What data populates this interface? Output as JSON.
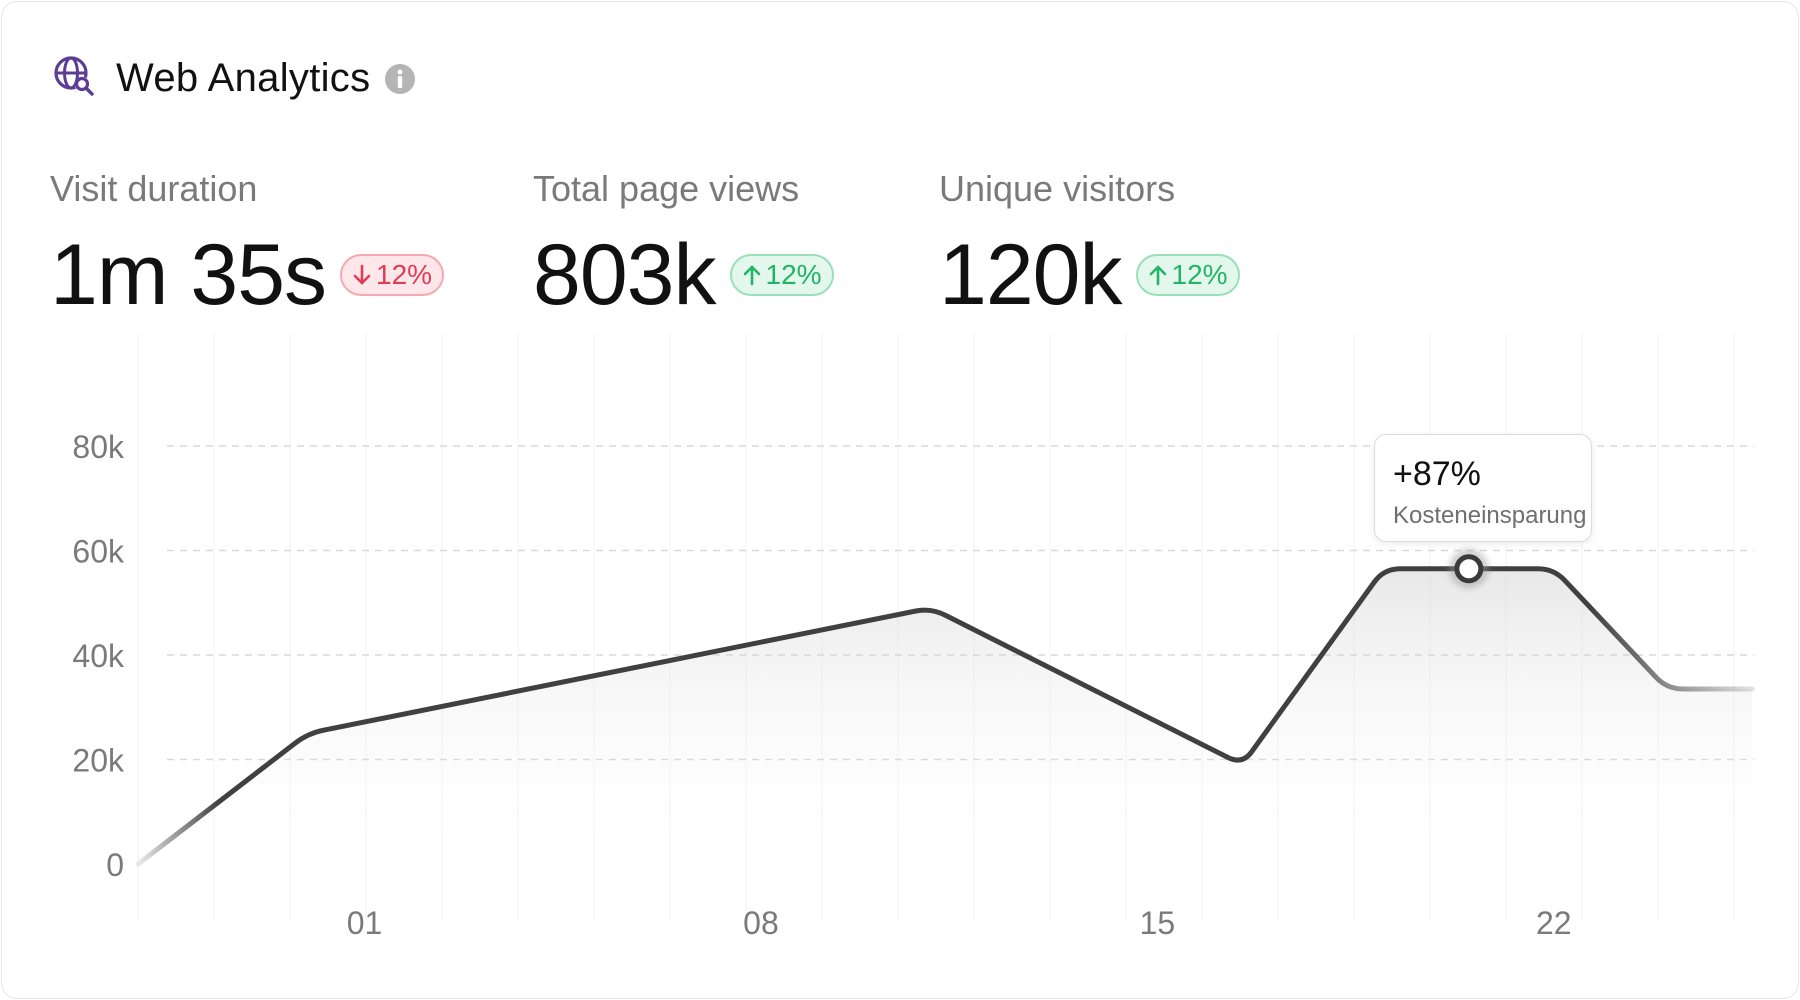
{
  "header": {
    "title": "Web Analytics",
    "logo_icon": "globe-search-icon",
    "info_icon": "info-icon",
    "accent": "#5b3d96"
  },
  "metrics": [
    {
      "label": "Visit duration",
      "value": "1m 35s",
      "change": "12%",
      "direction": "down"
    },
    {
      "label": "Total page views",
      "value": "803k",
      "change": "12%",
      "direction": "up"
    },
    {
      "label": "Unique visitors",
      "value": "120k",
      "change": "12%",
      "direction": "up"
    }
  ],
  "colors": {
    "down": "#e03d55",
    "up": "#22b466",
    "line": "#404040"
  },
  "tooltip": {
    "value": "+87%",
    "label": "Kosteneinsparung"
  },
  "chart_data": {
    "type": "area",
    "x": [
      -3,
      0,
      11,
      16.5,
      19,
      20.5,
      22,
      24,
      25.5
    ],
    "values": [
      0,
      25000,
      49000,
      19000,
      56500,
      56500,
      56500,
      33500,
      33500
    ],
    "x_ticks": [
      1,
      8,
      15,
      22
    ],
    "x_tick_labels": [
      "01",
      "08",
      "15",
      "22"
    ],
    "y_ticks": [
      0,
      20000,
      40000,
      60000,
      80000
    ],
    "y_tick_labels": [
      "0",
      "20k",
      "40k",
      "60k",
      "80k"
    ],
    "ylim": [
      0,
      80000
    ],
    "xlim": [
      -3,
      25.5
    ],
    "grid": true,
    "highlight_x": 20.5
  }
}
